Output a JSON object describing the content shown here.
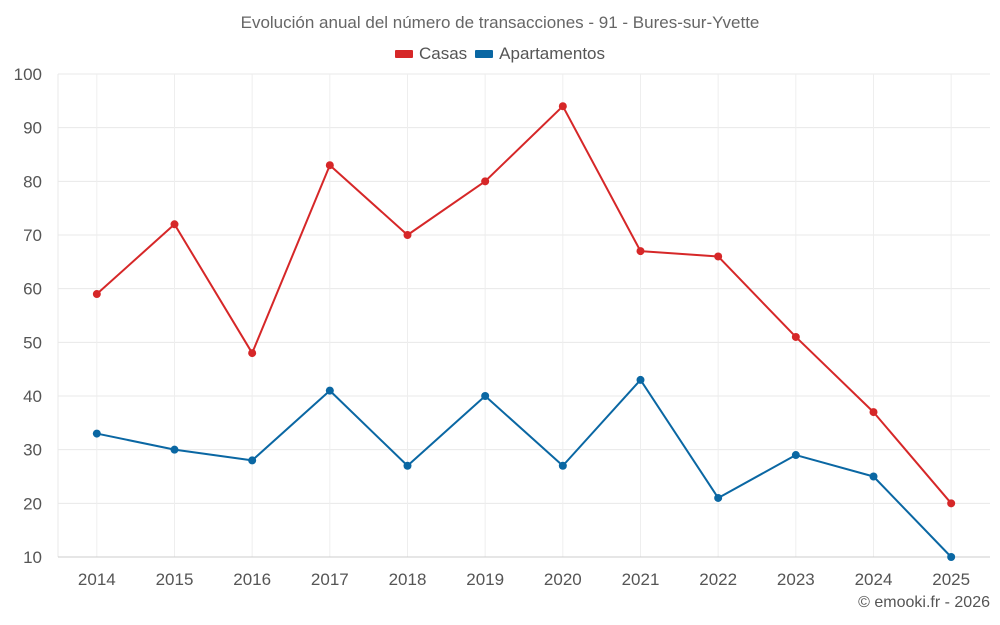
{
  "chart_data": {
    "type": "line",
    "title": "Evolución anual del número de transacciones - 91 - Bures-sur-Yvette",
    "categories": [
      "2014",
      "2015",
      "2016",
      "2017",
      "2018",
      "2019",
      "2020",
      "2021",
      "2022",
      "2023",
      "2024",
      "2025"
    ],
    "series": [
      {
        "name": "Casas",
        "color": "#d62728",
        "values": [
          59,
          72,
          48,
          83,
          70,
          80,
          94,
          67,
          66,
          51,
          37,
          20
        ]
      },
      {
        "name": "Apartamentos",
        "color": "#0a67a3",
        "values": [
          33,
          30,
          28,
          41,
          27,
          40,
          27,
          43,
          21,
          29,
          25,
          10
        ]
      }
    ],
    "ylim": [
      10,
      100
    ],
    "yticks": [
      10,
      20,
      30,
      40,
      50,
      60,
      70,
      80,
      90,
      100
    ],
    "grid": true,
    "legend_position": "top-center",
    "xlabel": "",
    "ylabel": ""
  },
  "credit": "© emooki.fr - 2026"
}
